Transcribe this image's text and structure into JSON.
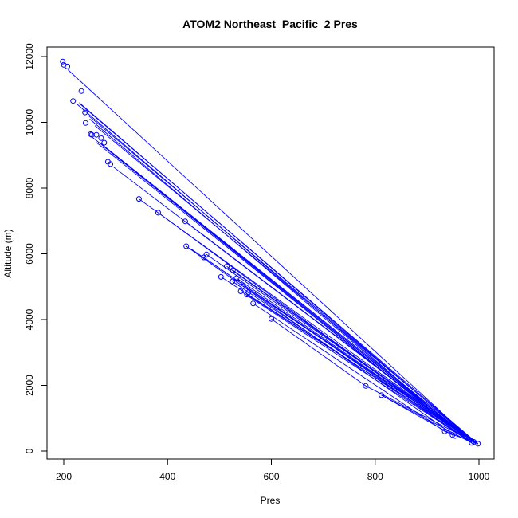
{
  "chart_data": {
    "type": "scatter",
    "title": "ATOM2 Northeast_Pacific_2 Pres",
    "xlabel": "Pres",
    "ylabel": "Altitude (m)",
    "xlim": [
      200,
      1000
    ],
    "ylim": [
      0,
      12000
    ],
    "x_ticks": [
      200,
      400,
      600,
      800,
      1000
    ],
    "y_ticks": [
      0,
      2000,
      4000,
      6000,
      8000,
      10000,
      12000
    ],
    "grid": false,
    "legend": "none",
    "color": "#0000ff",
    "series": [
      {
        "mode": "lines+markers",
        "points": [
          [
            198,
            11850
          ],
          [
            200,
            11750
          ],
          [
            207,
            11700
          ],
          [
            234,
            10950
          ],
          [
            218,
            10650
          ],
          [
            241,
            10300
          ],
          [
            242,
            9980
          ],
          [
            252,
            9640
          ],
          [
            254,
            9620
          ],
          [
            263,
            9620
          ],
          [
            272,
            9520
          ],
          [
            278,
            9380
          ],
          [
            285,
            8800
          ],
          [
            290,
            8730
          ],
          [
            345,
            7670
          ],
          [
            382,
            7250
          ],
          [
            434,
            6990
          ],
          [
            436,
            6230
          ],
          [
            470,
            5890
          ],
          [
            475,
            5980
          ],
          [
            503,
            5300
          ],
          [
            514,
            5620
          ],
          [
            525,
            5160
          ],
          [
            526,
            5500
          ],
          [
            533,
            5260
          ],
          [
            538,
            5120
          ],
          [
            541,
            4860
          ],
          [
            546,
            5020
          ],
          [
            553,
            4760
          ],
          [
            556,
            4830
          ],
          [
            565,
            4490
          ],
          [
            600,
            4020
          ],
          [
            782,
            1980
          ],
          [
            812,
            1700
          ],
          [
            934,
            600
          ],
          [
            949,
            490
          ],
          [
            954,
            460
          ],
          [
            986,
            250
          ],
          [
            990,
            280
          ],
          [
            998,
            220
          ]
        ],
        "segments": [
          [
            [
              208,
              11600
            ],
            [
              990,
              280
            ]
          ],
          [
            [
              225,
              10560
            ],
            [
              986,
              250
            ]
          ],
          [
            [
              230,
              10600
            ],
            [
              990,
              280
            ]
          ],
          [
            [
              232,
              10550
            ],
            [
              998,
              220
            ]
          ],
          [
            [
              248,
              10200
            ],
            [
              994,
              250
            ]
          ],
          [
            [
              250,
              10100
            ],
            [
              986,
              250
            ]
          ],
          [
            [
              260,
              9900
            ],
            [
              998,
              220
            ]
          ],
          [
            [
              255,
              9550
            ],
            [
              990,
              280
            ]
          ],
          [
            [
              262,
              9400
            ],
            [
              986,
              250
            ]
          ],
          [
            [
              272,
              9350
            ],
            [
              998,
              220
            ]
          ],
          [
            [
              278,
              9250
            ],
            [
              990,
              260
            ]
          ],
          [
            [
              290,
              9100
            ],
            [
              986,
              250
            ]
          ],
          [
            [
              295,
              8650
            ],
            [
              994,
              250
            ]
          ],
          [
            [
              345,
              7670
            ],
            [
              998,
              220
            ]
          ],
          [
            [
              382,
              7250
            ],
            [
              986,
              250
            ]
          ],
          [
            [
              434,
              6990
            ],
            [
              998,
              220
            ]
          ],
          [
            [
              436,
              6230
            ],
            [
              954,
              460
            ]
          ],
          [
            [
              445,
              6150
            ],
            [
              990,
              280
            ]
          ],
          [
            [
              470,
              5890
            ],
            [
              986,
              250
            ]
          ],
          [
            [
              475,
              5980
            ],
            [
              998,
              220
            ]
          ],
          [
            [
              503,
              5300
            ],
            [
              994,
              250
            ]
          ],
          [
            [
              514,
              5620
            ],
            [
              990,
              280
            ]
          ],
          [
            [
              525,
              5160
            ],
            [
              986,
              250
            ]
          ],
          [
            [
              526,
              5500
            ],
            [
              998,
              220
            ]
          ],
          [
            [
              533,
              5260
            ],
            [
              990,
              280
            ]
          ],
          [
            [
              541,
              4860
            ],
            [
              986,
              250
            ]
          ],
          [
            [
              546,
              5020
            ],
            [
              994,
              250
            ]
          ],
          [
            [
              553,
              4760
            ],
            [
              998,
              220
            ]
          ],
          [
            [
              565,
              4490
            ],
            [
              934,
              600
            ]
          ],
          [
            [
              600,
              4020
            ],
            [
              782,
              1980
            ]
          ],
          [
            [
              782,
              1980
            ],
            [
              990,
              280
            ]
          ],
          [
            [
              812,
              1700
            ],
            [
              986,
              250
            ]
          ],
          [
            [
              812,
              1700
            ],
            [
              949,
              490
            ]
          ],
          [
            [
              934,
              600
            ],
            [
              998,
              220
            ]
          ]
        ]
      }
    ]
  }
}
